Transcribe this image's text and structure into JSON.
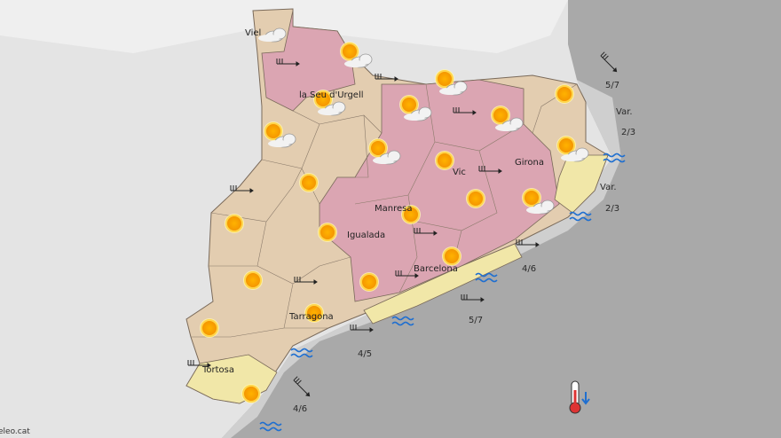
{
  "map": {
    "cities": [
      "Viel",
      "la Seu d'Urgell",
      "Manresa",
      "Igualada",
      "Barcelona",
      "Vic",
      "Girona",
      "Tarragona",
      "Tortosa"
    ],
    "sea_labels": [
      "5/7",
      "Var.",
      "2/3",
      "Var.",
      "2/3",
      "4/6",
      "5/7",
      "4/5",
      "4/6"
    ],
    "credit": "eleo.cat"
  }
}
